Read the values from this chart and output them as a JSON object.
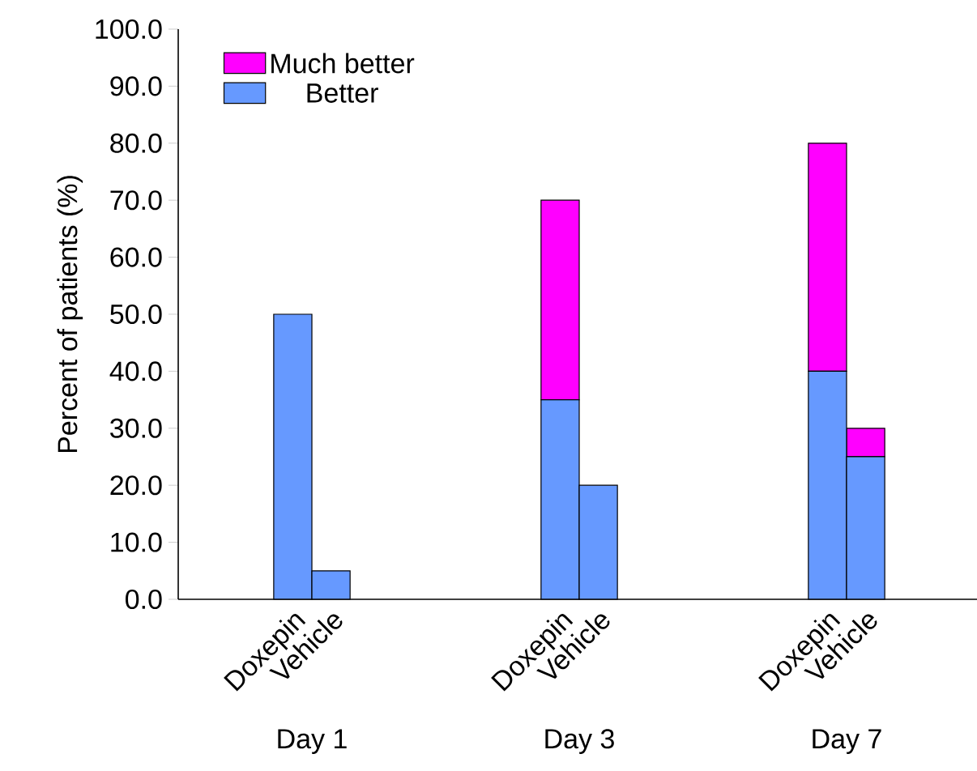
{
  "chart_data": {
    "type": "bar",
    "stacked": true,
    "ylabel": "Percent of patients (%)",
    "categories": [
      "Doxepin",
      "Vehicle",
      "Doxepin",
      "Vehicle",
      "Doxepin",
      "Vehicle"
    ],
    "series": [
      {
        "name": "Better",
        "color": "#6699ff",
        "values": [
          50,
          5,
          35,
          20,
          40,
          25
        ]
      },
      {
        "name": "Much better",
        "color": "#ff00ff",
        "values": [
          0,
          0,
          35,
          0,
          40,
          5
        ]
      }
    ],
    "annotations": [
      "Day 1",
      "Day 3",
      "Day 7"
    ],
    "ylim": [
      0,
      100
    ],
    "yticks": [
      {
        "value": 0,
        "label": "0.0"
      },
      {
        "value": 10,
        "label": "10.0"
      },
      {
        "value": 20,
        "label": "20.0"
      },
      {
        "value": 30,
        "label": "30.0"
      },
      {
        "value": 40,
        "label": "40.0"
      },
      {
        "value": 50,
        "label": "50.0"
      },
      {
        "value": 60,
        "label": "60.0"
      },
      {
        "value": 70,
        "label": "70.0"
      },
      {
        "value": 80,
        "label": "80.0"
      },
      {
        "value": 90,
        "label": "90.0"
      },
      {
        "value": 100,
        "label": "100.0"
      }
    ],
    "legend": "top left",
    "grid": false
  }
}
